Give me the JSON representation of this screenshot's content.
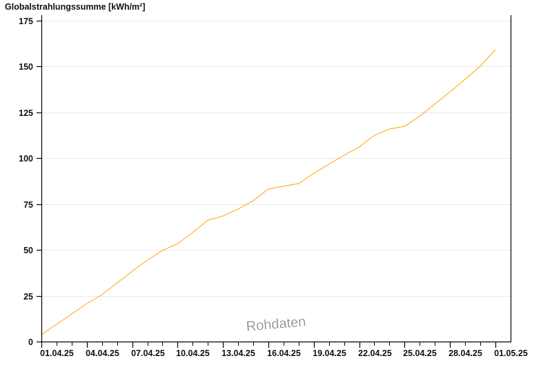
{
  "chart_data": {
    "type": "line",
    "title": "Globalstrahlungssumme [kWh/m²]",
    "xlabel": "",
    "ylabel": "",
    "ylim": [
      0,
      175
    ],
    "yticks": [
      0,
      25,
      50,
      75,
      100,
      125,
      150,
      175
    ],
    "xlim": [
      "01.04.25",
      "02.05.25"
    ],
    "xticks": [
      "01.04.25",
      "04.04.25",
      "07.04.25",
      "10.04.25",
      "13.04.25",
      "16.04.25",
      "19.04.25",
      "22.04.25",
      "25.04.25",
      "28.04.25",
      "01.05.25"
    ],
    "grid": true,
    "line_color": "#ffa500",
    "watermark": "Rohdaten",
    "series": [
      {
        "x": [
          "01.04.25",
          "02.04.25",
          "03.04.25",
          "04.04.25",
          "05.04.25",
          "06.04.25",
          "07.04.25",
          "08.04.25",
          "09.04.25",
          "10.04.25",
          "11.04.25",
          "12.04.25",
          "13.04.25",
          "14.04.25",
          "15.04.25",
          "16.04.25",
          "17.04.25",
          "18.04.25",
          "19.04.25",
          "20.04.25",
          "21.04.25",
          "22.04.25",
          "23.04.25",
          "24.04.25",
          "25.04.25",
          "26.04.25",
          "27.04.25",
          "28.04.25",
          "29.04.25",
          "30.04.25",
          "01.05.25"
        ],
        "values": [
          3.8,
          9.4,
          15.0,
          20.7,
          25.6,
          32.0,
          38.4,
          44.4,
          49.7,
          53.4,
          59.5,
          66.2,
          68.5,
          72.3,
          76.8,
          83.2,
          84.7,
          86.2,
          91.8,
          96.7,
          101.6,
          106.1,
          112.5,
          115.9,
          117.4,
          123.0,
          129.5,
          136.2,
          143.0,
          150.2,
          159.2
        ]
      }
    ]
  }
}
